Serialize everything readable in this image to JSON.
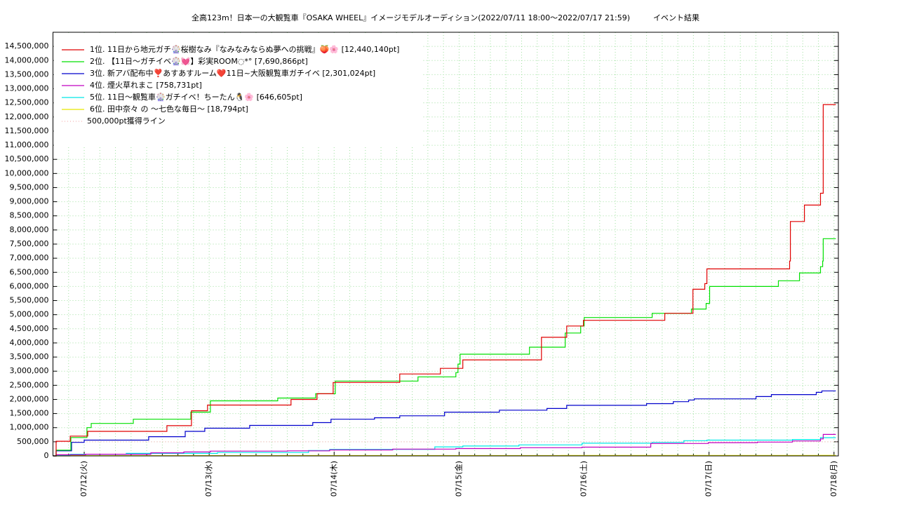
{
  "chart_data": {
    "type": "line",
    "steps": true,
    "title": "全高123m！日本一の大観覧車『OSAKA WHEEL』イメージモデルオーディション(2022/07/11 18:00～2022/07/17 21:59)　　　イベント結果",
    "xlim": [
      11.75,
      18.035
    ],
    "xticks": [
      {
        "value": 12,
        "label": "07/12(火)"
      },
      {
        "value": 13,
        "label": "07/13(水)"
      },
      {
        "value": 14,
        "label": "07/14(木)"
      },
      {
        "value": 15,
        "label": "07/15(金)"
      },
      {
        "value": 16,
        "label": "07/16(土)"
      },
      {
        "value": 17,
        "label": "07/17(日)"
      },
      {
        "value": 18,
        "label": "07/18(月)"
      }
    ],
    "xminorticks": [
      11.875,
      12.125,
      12.25,
      12.375,
      12.5,
      12.625,
      12.75,
      12.875,
      13.125,
      13.25,
      13.375,
      13.5,
      13.625,
      13.75,
      13.875,
      14.125,
      14.25,
      14.375,
      14.5,
      14.625,
      14.75,
      14.875,
      15.125,
      15.25,
      15.375,
      15.5,
      15.625,
      15.75,
      15.875,
      16.125,
      16.25,
      16.375,
      16.5,
      16.625,
      16.75,
      16.875,
      17.125,
      17.25,
      17.375,
      17.5,
      17.625,
      17.75,
      17.875
    ],
    "ylim": [
      0,
      15000000
    ],
    "yticks": [
      0,
      {
        "value": 500000,
        "label": "500,000"
      },
      {
        "value": 1000000,
        "label": "1,000,000"
      },
      {
        "value": 1500000,
        "label": "1,500,000"
      },
      {
        "value": 2000000,
        "label": "2,000,000"
      },
      {
        "value": 2500000,
        "label": "2,500,000"
      },
      {
        "value": 3000000,
        "label": "3,000,000"
      },
      {
        "value": 3500000,
        "label": "3,500,000"
      },
      {
        "value": 4000000,
        "label": "4,000,000"
      },
      {
        "value": 4500000,
        "label": "4,500,000"
      },
      {
        "value": 5000000,
        "label": "5,000,000"
      },
      {
        "value": 5500000,
        "label": "5,500,000"
      },
      {
        "value": 6000000,
        "label": "6,000,000"
      },
      {
        "value": 6500000,
        "label": "6,500,000"
      },
      {
        "value": 7000000,
        "label": "7,000,000"
      },
      {
        "value": 7500000,
        "label": "7,500,000"
      },
      {
        "value": 8000000,
        "label": "8,000,000"
      },
      {
        "value": 8500000,
        "label": "8,500,000"
      },
      {
        "value": 9000000,
        "label": "9,000,000"
      },
      {
        "value": 9500000,
        "label": "9,500,000"
      },
      {
        "value": 10000000,
        "label": "10,000,000"
      },
      {
        "value": 10500000,
        "label": "10,500,000"
      },
      {
        "value": 11000000,
        "label": "11,000,000"
      },
      {
        "value": 11500000,
        "label": "11,500,000"
      },
      {
        "value": 12000000,
        "label": "12,000,000"
      },
      {
        "value": 12500000,
        "label": "12,500,000"
      },
      {
        "value": 13000000,
        "label": "13,000,000"
      },
      {
        "value": 13500000,
        "label": "13,500,000"
      },
      {
        "value": 14000000,
        "label": "14,000,000"
      },
      {
        "value": 14500000,
        "label": "14,500,000"
      }
    ],
    "grid": true,
    "grid_color": "#9fe09f",
    "legend": "upper-left",
    "series": [
      {
        "name": "1位. 11日から地元ガチ🎡桜樹なみ『なみなみならぬ夢への挑戦』🍑🌸 [12,440,140pt]",
        "color": "#e00000",
        "x": [
          11.753,
          11.775,
          11.888,
          12.028,
          12.662,
          12.858,
          12.987,
          13.655,
          13.863,
          13.992,
          14.525,
          14.85,
          15.03,
          15.659,
          15.861,
          15.995,
          16.646,
          16.871,
          16.966,
          16.983,
          17.645,
          17.651,
          17.763,
          17.892,
          17.914,
          18.015
        ],
        "values": [
          0,
          520000,
          700000,
          870000,
          1070000,
          1600000,
          1800000,
          2000000,
          2200000,
          2600000,
          2900000,
          3100000,
          3400000,
          4200000,
          4600000,
          4800000,
          5050000,
          5900000,
          6100000,
          6620000,
          6900000,
          8300000,
          8880000,
          9300000,
          12440140,
          12440140
        ]
      },
      {
        "name": "2位. 【11日～ガチイベ🎡💓】彩実ROOM◌*° [7,690,866pt]",
        "color": "#00e000",
        "x": [
          11.753,
          11.775,
          11.893,
          12.022,
          12.056,
          12.393,
          12.853,
          13.01,
          13.549,
          13.852,
          14.009,
          14.671,
          14.974,
          14.991,
          15.008,
          15.563,
          15.849,
          15.973,
          16.001,
          16.545,
          16.859,
          16.977,
          17.005,
          17.555,
          17.724,
          17.892,
          17.909,
          17.914,
          18.015
        ],
        "values": [
          0,
          200000,
          650000,
          1000000,
          1150000,
          1300000,
          1550000,
          1950000,
          2050000,
          2200000,
          2650000,
          2800000,
          2950000,
          3250000,
          3600000,
          3850000,
          4350000,
          4600000,
          4900000,
          5050000,
          5200000,
          5400000,
          6000000,
          6200000,
          6480000,
          6700000,
          6900000,
          7690866,
          7690866
        ]
      },
      {
        "name": "3位. 新アバ配布中❣️あすあすルーム❤️11日~大阪観覧車ガチイベ [2,301,024pt]",
        "color": "#0000cc",
        "x": [
          11.753,
          11.775,
          11.899,
          12.0,
          12.516,
          12.808,
          12.965,
          13.324,
          13.829,
          13.975,
          14.323,
          14.525,
          14.884,
          15.322,
          15.703,
          15.861,
          16.5,
          16.714,
          16.837,
          16.882,
          17.376,
          17.499,
          17.858,
          17.903,
          18.015
        ],
        "values": [
          0,
          180000,
          480000,
          560000,
          680000,
          870000,
          980000,
          1080000,
          1180000,
          1300000,
          1350000,
          1420000,
          1550000,
          1620000,
          1680000,
          1790000,
          1850000,
          1920000,
          1980000,
          2020000,
          2100000,
          2170000,
          2250000,
          2301024,
          2301024
        ]
      },
      {
        "name": "4位. 煙火草れまこ [758,731pt]",
        "color": "#c000c0",
        "x": [
          11.753,
          11.775,
          12.011,
          12.533,
          12.797,
          13.01,
          13.627,
          13.964,
          14.469,
          14.974,
          15.49,
          15.984,
          16.534,
          16.994,
          17.387,
          17.668,
          17.892,
          17.914,
          18.015
        ],
        "values": [
          0,
          40000,
          60000,
          110000,
          140000,
          170000,
          180000,
          210000,
          240000,
          260000,
          290000,
          310000,
          440000,
          470000,
          490000,
          530000,
          600000,
          758731,
          758731
        ]
      },
      {
        "name": "5位. 11日〜観覧車🎡ガチイベ！ちーたん🐧🌸 [646,605pt]",
        "color": "#00e8e8",
        "x": [
          11.753,
          11.775,
          11.888,
          12.336,
          13.066,
          13.795,
          13.964,
          14.806,
          15.03,
          15.479,
          15.984,
          16.545,
          16.798,
          16.983,
          17.668,
          17.892,
          18.015
        ],
        "values": [
          0,
          30000,
          60000,
          90000,
          120000,
          190000,
          230000,
          320000,
          350000,
          390000,
          450000,
          480000,
          540000,
          560000,
          580000,
          646605,
          646605
        ]
      },
      {
        "name": "6位. 田中奈々 の 〜七色な毎日〜 [18,794pt]",
        "color": "#e8e800",
        "x": [
          11.753,
          11.888,
          13.571,
          15.816,
          17.892,
          18.015
        ],
        "values": [
          0,
          10000,
          13000,
          16000,
          18794,
          18794
        ]
      }
    ],
    "reference_line": {
      "label": "500,000pt獲得ライン",
      "value": 500000,
      "color": "#f0a0a0"
    }
  }
}
